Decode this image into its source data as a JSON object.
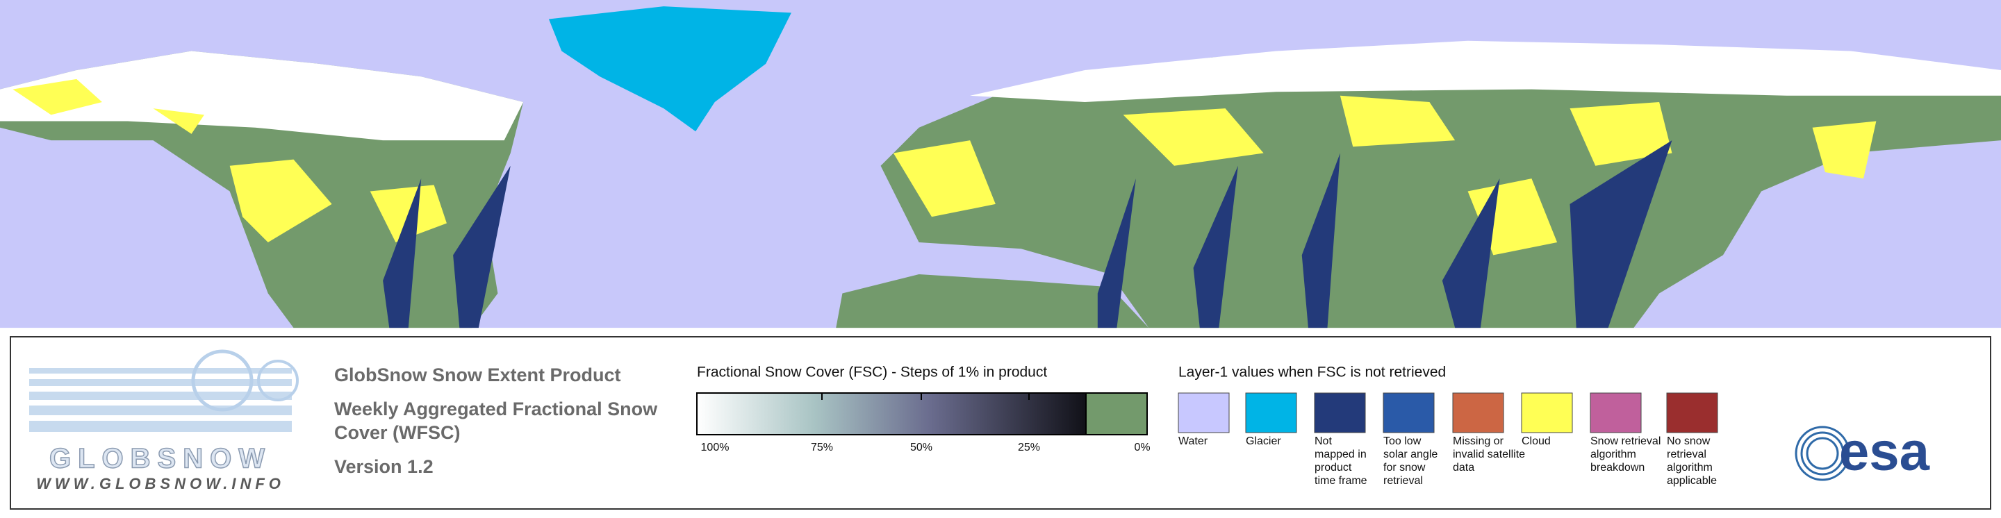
{
  "header": {
    "title": "GlobSnow Snow Extent Product",
    "subtitle_lines": [
      "Weekly Aggregated Fractional Snow",
      "Cover (WFSC)"
    ],
    "version": "Version 1.2"
  },
  "logo": {
    "name": "GLOBSNOW",
    "url": "WWW.GLOBSNOW.INFO",
    "partner": "esa"
  },
  "colorbar": {
    "title": "Fractional Snow Cover (FSC) - Steps of 1% in product",
    "tick_labels": [
      "100%",
      "75%",
      "50%",
      "25%",
      "0%"
    ]
  },
  "legend": {
    "title": "Layer-1 values when FSC is not retrieved",
    "items": [
      {
        "color": "#c8c8ff",
        "lines": [
          "Water"
        ]
      },
      {
        "color": "#00b4e6",
        "lines": [
          "Glacier"
        ]
      },
      {
        "color": "#233a7a",
        "lines": [
          "Not",
          "mapped in",
          "product",
          "time frame"
        ]
      },
      {
        "color": "#2a5aa8",
        "lines": [
          "Too low",
          "solar angle",
          "for snow",
          "retrieval"
        ]
      },
      {
        "color": "#cc6644",
        "lines": [
          "Missing or",
          "invalid satellite",
          "data"
        ]
      },
      {
        "color": "#ffff55",
        "lines": [
          "Cloud"
        ]
      },
      {
        "color": "#c0609c",
        "lines": [
          "Snow retrieval",
          "algorithm",
          "breakdown"
        ]
      },
      {
        "color": "#9a2e2e",
        "lines": [
          "No snow",
          "retrieval",
          "algorithm",
          "applicable"
        ]
      }
    ]
  }
}
